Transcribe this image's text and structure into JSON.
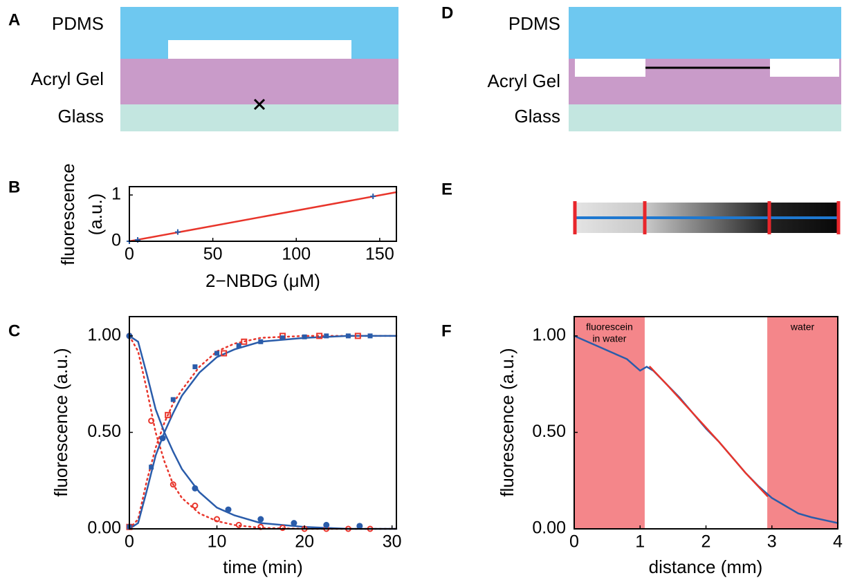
{
  "panel_labels": [
    "A",
    "B",
    "C",
    "D",
    "E",
    "F"
  ],
  "diagram_a": {
    "layers": [
      "PDMS",
      "Acryl Gel",
      "Glass"
    ]
  },
  "diagram_d": {
    "layers": [
      "PDMS",
      "Acryl Gel",
      "Glass"
    ]
  },
  "chart_data": [
    {
      "type": "line",
      "xlabel": "2−NBDG (μM)",
      "ylabel": [
        "fluorescence",
        "(a.u.)"
      ],
      "xlim": [
        0,
        160
      ],
      "ylim": [
        0,
        1.18
      ],
      "xticks": [
        0,
        50,
        100,
        150
      ],
      "yticks": [
        0,
        1
      ],
      "series": [
        {
          "style": "line",
          "color": "#e8352b",
          "x": [
            0,
            160
          ],
          "values": [
            0,
            1.06
          ]
        },
        {
          "style": "markers",
          "marker": "plus",
          "color": "#2a5caa",
          "x": [
            0,
            5,
            29,
            146
          ],
          "values": [
            0,
            0.03,
            0.2,
            0.97
          ]
        }
      ]
    },
    {
      "type": "line",
      "xlabel": "time (min)",
      "ylabel": [
        "fluorescence (a.u.)"
      ],
      "xlim": [
        0,
        30.5
      ],
      "ylim": [
        0,
        1.1
      ],
      "xticks": [
        0,
        10,
        20,
        30
      ],
      "yticks": [
        {
          "value": 0,
          "label": "0.00"
        },
        {
          "value": 0.5,
          "label": "0.50"
        },
        {
          "value": 1,
          "label": "1.00"
        }
      ],
      "series": [
        {
          "style": "line",
          "dash": "dotted",
          "color": "#e8352b",
          "x": [
            0,
            1,
            2,
            3,
            4,
            5,
            6,
            8,
            10,
            12,
            15,
            20,
            25,
            30.5
          ],
          "values": [
            0,
            0.05,
            0.25,
            0.42,
            0.55,
            0.65,
            0.72,
            0.84,
            0.92,
            0.96,
            0.99,
            1,
            1,
            1
          ]
        },
        {
          "style": "line",
          "dash": "dotted",
          "color": "#e8352b",
          "x": [
            0,
            1,
            2,
            3,
            4,
            5,
            6,
            8,
            10,
            12,
            15,
            20,
            25,
            30.5
          ],
          "values": [
            1,
            0.92,
            0.72,
            0.5,
            0.35,
            0.23,
            0.16,
            0.08,
            0.04,
            0.02,
            0.005,
            0,
            0,
            0
          ]
        },
        {
          "style": "line",
          "color": "#2a5caa",
          "x": [
            0,
            1,
            2,
            3,
            4,
            5,
            6,
            8,
            10,
            12,
            15,
            20,
            25,
            30.5
          ],
          "values": [
            0,
            0.03,
            0.2,
            0.38,
            0.5,
            0.6,
            0.69,
            0.81,
            0.89,
            0.93,
            0.97,
            0.99,
            1,
            1
          ]
        },
        {
          "style": "line",
          "color": "#2a5caa",
          "x": [
            0,
            1,
            2,
            3,
            4,
            5,
            6,
            8,
            10,
            12,
            15,
            20,
            25,
            30.5
          ],
          "values": [
            1,
            0.97,
            0.8,
            0.62,
            0.5,
            0.4,
            0.31,
            0.19,
            0.11,
            0.07,
            0.03,
            0.01,
            0,
            0
          ]
        },
        {
          "style": "markers",
          "marker": "square-open",
          "color": "#e8352b",
          "x": [
            0,
            4.4,
            10.8,
            13.1,
            17.5,
            21.7,
            26.1
          ],
          "values": [
            0.01,
            0.59,
            0.91,
            0.97,
            1,
            1,
            1
          ]
        },
        {
          "style": "markers",
          "marker": "circle-open",
          "color": "#e8352b",
          "x": [
            0,
            2.5,
            5,
            7.5,
            10,
            12.5,
            15,
            17.5,
            20,
            22.5,
            25,
            27.5
          ],
          "values": [
            1,
            0.56,
            0.23,
            0.12,
            0.05,
            0.02,
            0.01,
            0.005,
            0,
            0,
            0,
            0
          ]
        },
        {
          "style": "markers",
          "marker": "square-filled",
          "color": "#2a5caa",
          "x": [
            0,
            2.5,
            5,
            7.5,
            10,
            12.5,
            15,
            17.5,
            20,
            22.5,
            25,
            27.5
          ],
          "values": [
            0.01,
            0.32,
            0.67,
            0.84,
            0.91,
            0.95,
            0.97,
            0.99,
            0.995,
            1,
            1,
            1
          ]
        },
        {
          "style": "markers",
          "marker": "circle-filled",
          "color": "#2a5caa",
          "x": [
            0,
            3.8,
            7.5,
            11.3,
            15,
            18.8,
            22.5,
            26.3
          ],
          "values": [
            1,
            0.47,
            0.21,
            0.1,
            0.05,
            0.03,
            0.02,
            0.015
          ]
        }
      ]
    },
    {
      "type": "line",
      "xlabel": "distance (mm)",
      "ylabel": [
        "fluorescence (a.u.)"
      ],
      "xlim": [
        0,
        4
      ],
      "ylim": [
        0,
        1.1
      ],
      "xticks": [
        0,
        1,
        2,
        3,
        4
      ],
      "yticks": [
        {
          "value": 0,
          "label": "0.00"
        },
        {
          "value": 0.5,
          "label": "0.50"
        },
        {
          "value": 1,
          "label": "1.00"
        }
      ],
      "shaded": [
        {
          "xrange": [
            0,
            1.07
          ],
          "label": [
            "fluorescein",
            "in water"
          ],
          "color": "#f4868a"
        },
        {
          "xrange": [
            2.93,
            4
          ],
          "label": [
            "water"
          ],
          "color": "#f4868a"
        }
      ],
      "series": [
        {
          "style": "line",
          "color": "#2a5caa",
          "x": [
            0,
            0.2,
            0.4,
            0.6,
            0.8,
            1.0,
            1.1,
            1.2,
            1.4,
            1.6,
            1.8,
            2.0,
            2.2,
            2.4,
            2.6,
            2.8,
            3.0,
            3.2,
            3.4,
            3.6,
            3.8,
            4.0
          ],
          "values": [
            1.0,
            0.97,
            0.94,
            0.91,
            0.88,
            0.82,
            0.84,
            0.82,
            0.75,
            0.68,
            0.6,
            0.52,
            0.45,
            0.37,
            0.29,
            0.22,
            0.16,
            0.12,
            0.08,
            0.06,
            0.045,
            0.03
          ]
        },
        {
          "style": "line",
          "color": "#e8352b",
          "x": [
            1.15,
            1.4,
            1.8,
            2.2,
            2.6,
            2.93
          ],
          "values": [
            0.84,
            0.75,
            0.6,
            0.45,
            0.29,
            0.17
          ]
        }
      ]
    }
  ]
}
